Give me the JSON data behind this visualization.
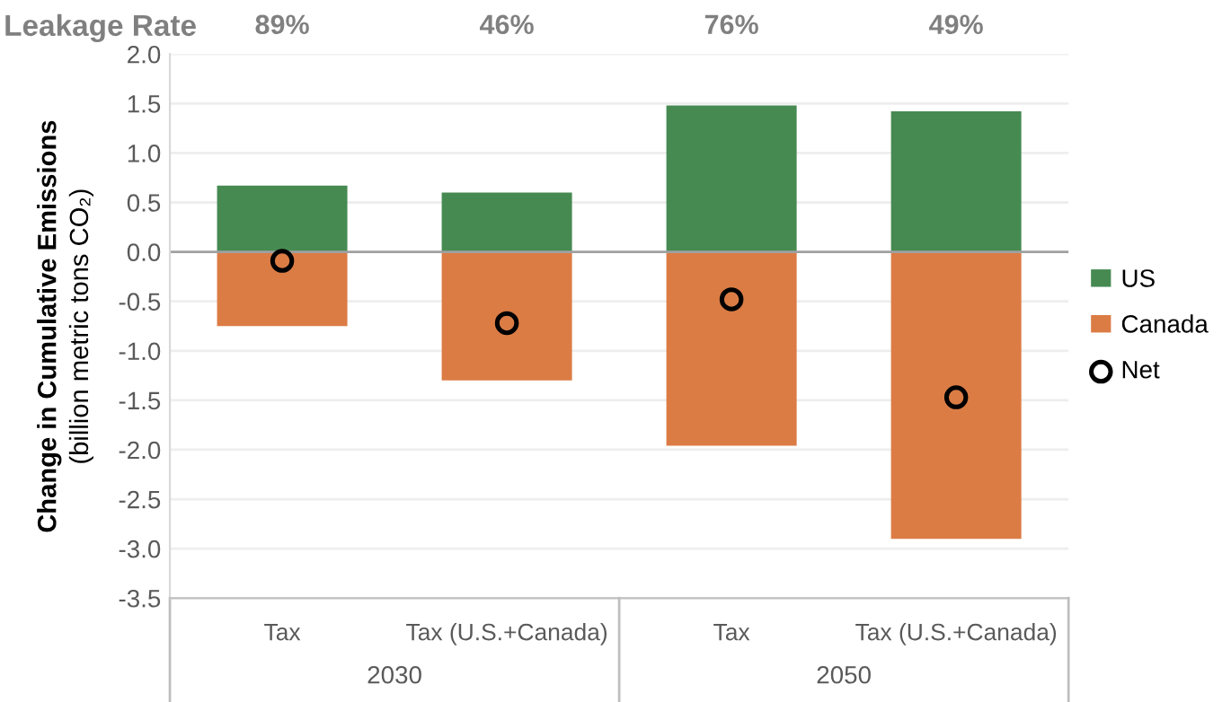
{
  "chart_data": {
    "type": "bar",
    "stacked": true,
    "ylabel": "Change in Cumulative Emissions\n(billion metric tons CO₂)",
    "categories": [
      "Tax",
      "Tax (U.S.+Canada)",
      "Tax",
      "Tax (U.S.+Canada)"
    ],
    "series": [
      {
        "name": "US",
        "color": "#468a52",
        "values": [
          0.67,
          0.6,
          1.48,
          1.42
        ]
      },
      {
        "name": "Canada",
        "color": "#db7c45",
        "values": [
          -0.75,
          -1.3,
          -1.96,
          -2.9
        ]
      },
      {
        "name": "Net",
        "type": "scatter",
        "marker": "circle",
        "color": "#000000",
        "values": [
          -0.09,
          -0.72,
          -0.48,
          -1.47
        ]
      }
    ],
    "annotations": [
      "Leakage Rate",
      "89%",
      "46%",
      "76%",
      "49%",
      "2030",
      "2050"
    ],
    "ylim": [
      -3.5,
      2.0
    ],
    "yticks": [
      {
        "value": -3.5,
        "label": "-3.5"
      },
      {
        "value": -3.0,
        "label": "-3.0"
      },
      {
        "value": -2.5,
        "label": "-2.5"
      },
      {
        "value": -2.0,
        "label": "-2.0"
      },
      {
        "value": -1.5,
        "label": "-1.5"
      },
      {
        "value": -1.0,
        "label": "-1.0"
      },
      {
        "value": -0.5,
        "label": "-0.5"
      },
      {
        "value": 0.0,
        "label": "0.0"
      },
      {
        "value": 0.5,
        "label": "0.5"
      },
      {
        "value": 1.0,
        "label": "1.0"
      },
      {
        "value": 1.5,
        "label": "1.5"
      },
      {
        "value": 2.0,
        "label": "2.0"
      }
    ],
    "grid": "y",
    "legend": "right"
  }
}
